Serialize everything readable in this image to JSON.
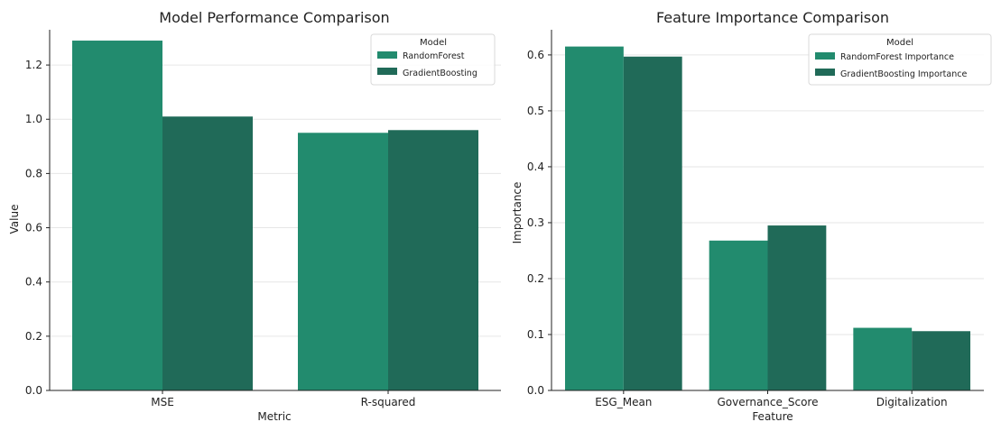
{
  "chart_data": [
    {
      "type": "bar",
      "title": "Model Performance Comparison",
      "xlabel": "Metric",
      "ylabel": "Value",
      "categories": [
        "MSE",
        "R-squared"
      ],
      "series": [
        {
          "name": "RandomForest",
          "values": [
            1.29,
            0.95
          ],
          "color": "#228b6e"
        },
        {
          "name": "GradientBoosting",
          "values": [
            1.01,
            0.96
          ],
          "color": "#206a58"
        }
      ],
      "ylim": [
        0,
        1.33
      ],
      "yticks": [
        0.0,
        0.2,
        0.4,
        0.6,
        0.8,
        1.0,
        1.2
      ],
      "ytick_labels": [
        "0.0",
        "0.2",
        "0.4",
        "0.6",
        "0.8",
        "1.0",
        "1.2"
      ],
      "legend_title": "Model",
      "legend_position": "top-right",
      "grid": "horizontal"
    },
    {
      "type": "bar",
      "title": "Feature Importance Comparison",
      "xlabel": "Feature",
      "ylabel": "Importance",
      "categories": [
        "ESG_Mean",
        "Governance_Score",
        "Digitalization"
      ],
      "series": [
        {
          "name": "RandomForest Importance",
          "values": [
            0.615,
            0.268,
            0.112
          ],
          "color": "#228b6e"
        },
        {
          "name": "GradientBoosting Importance",
          "values": [
            0.597,
            0.295,
            0.106
          ],
          "color": "#206a58"
        }
      ],
      "ylim": [
        0,
        0.645
      ],
      "yticks": [
        0.0,
        0.1,
        0.2,
        0.3,
        0.4,
        0.5,
        0.6
      ],
      "ytick_labels": [
        "0.0",
        "0.1",
        "0.2",
        "0.3",
        "0.4",
        "0.5",
        "0.6"
      ],
      "legend_title": "Model",
      "legend_position": "top-right",
      "grid": "horizontal"
    }
  ]
}
